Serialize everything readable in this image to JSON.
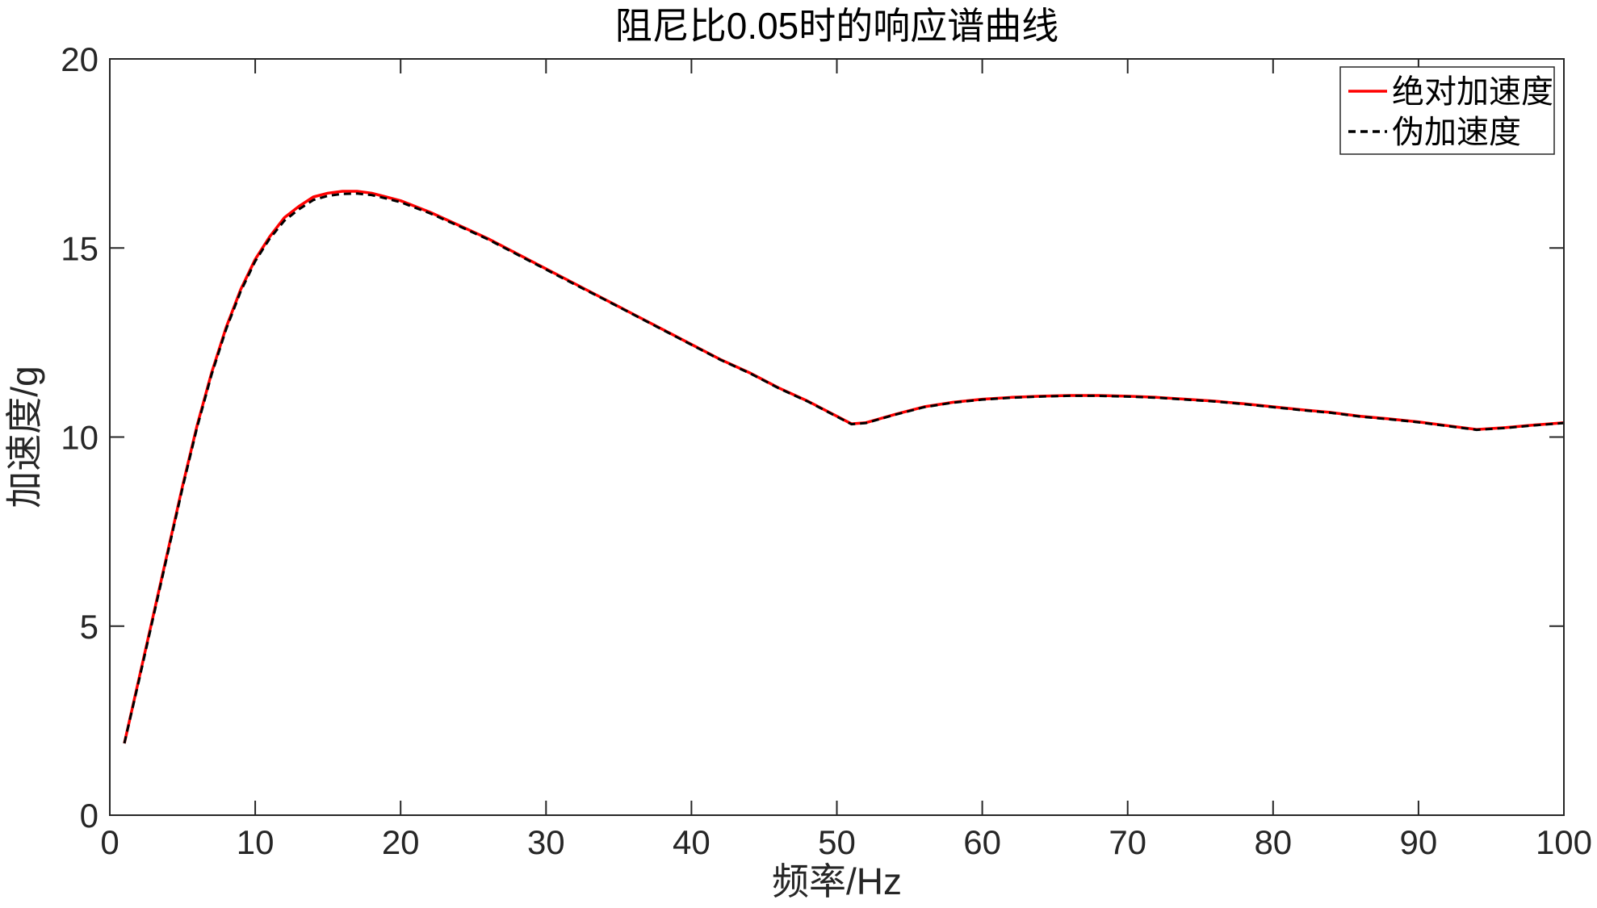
{
  "chart_data": {
    "type": "line",
    "title": "阻尼比0.05时的响应谱曲线",
    "xlabel": "频率/Hz",
    "ylabel": "加速度/g",
    "xlim": [
      0,
      100
    ],
    "ylim": [
      0,
      20
    ],
    "xticks": [
      0,
      10,
      20,
      30,
      40,
      50,
      60,
      70,
      80,
      90,
      100
    ],
    "yticks": [
      0,
      5,
      10,
      15,
      20
    ],
    "grid": false,
    "legend_position": "top-right",
    "series": [
      {
        "name": "绝对加速度",
        "color": "#ff0000",
        "style": "solid",
        "x": [
          1,
          2,
          3,
          4,
          5,
          6,
          7,
          8,
          9,
          10,
          11,
          12,
          13,
          14,
          15,
          16,
          17,
          18,
          19,
          20,
          22,
          24,
          26,
          28,
          30,
          32,
          34,
          36,
          38,
          40,
          42,
          44,
          46,
          48,
          50,
          51,
          52,
          54,
          56,
          58,
          60,
          62,
          64,
          66,
          68,
          70,
          72,
          74,
          76,
          78,
          80,
          82,
          84,
          86,
          88,
          90,
          92,
          94,
          96,
          98,
          100
        ],
        "y": [
          1.9,
          3.6,
          5.3,
          7.0,
          8.7,
          10.3,
          11.7,
          12.9,
          13.9,
          14.7,
          15.3,
          15.8,
          16.1,
          16.35,
          16.45,
          16.5,
          16.5,
          16.45,
          16.35,
          16.25,
          15.95,
          15.6,
          15.25,
          14.85,
          14.45,
          14.05,
          13.65,
          13.25,
          12.85,
          12.45,
          12.05,
          11.7,
          11.3,
          10.95,
          10.55,
          10.35,
          10.38,
          10.6,
          10.8,
          10.92,
          11.0,
          11.05,
          11.08,
          11.1,
          11.1,
          11.08,
          11.05,
          11.0,
          10.95,
          10.88,
          10.8,
          10.72,
          10.65,
          10.55,
          10.48,
          10.4,
          10.3,
          10.2,
          10.25,
          10.32,
          10.38
        ]
      },
      {
        "name": "伪加速度",
        "color": "#000000",
        "style": "dashed",
        "x": [
          1,
          2,
          3,
          4,
          5,
          6,
          7,
          8,
          9,
          10,
          11,
          12,
          13,
          14,
          15,
          16,
          17,
          18,
          19,
          20,
          22,
          24,
          26,
          28,
          30,
          32,
          34,
          36,
          38,
          40,
          42,
          44,
          46,
          48,
          50,
          51,
          52,
          54,
          56,
          58,
          60,
          62,
          64,
          66,
          68,
          70,
          72,
          74,
          76,
          78,
          80,
          82,
          84,
          86,
          88,
          90,
          92,
          94,
          96,
          98,
          100
        ],
        "y": [
          1.9,
          3.55,
          5.25,
          6.95,
          8.65,
          10.25,
          11.65,
          12.85,
          13.85,
          14.65,
          15.25,
          15.72,
          16.02,
          16.27,
          16.38,
          16.43,
          16.44,
          16.4,
          16.31,
          16.21,
          15.92,
          15.58,
          15.23,
          14.83,
          14.43,
          14.03,
          13.64,
          13.24,
          12.84,
          12.44,
          12.04,
          11.69,
          11.29,
          10.94,
          10.54,
          10.34,
          10.37,
          10.59,
          10.79,
          10.91,
          10.99,
          11.04,
          11.07,
          11.09,
          11.09,
          11.07,
          11.04,
          10.99,
          10.94,
          10.87,
          10.79,
          10.71,
          10.64,
          10.54,
          10.47,
          10.39,
          10.29,
          10.19,
          10.24,
          10.31,
          10.37
        ]
      }
    ]
  }
}
